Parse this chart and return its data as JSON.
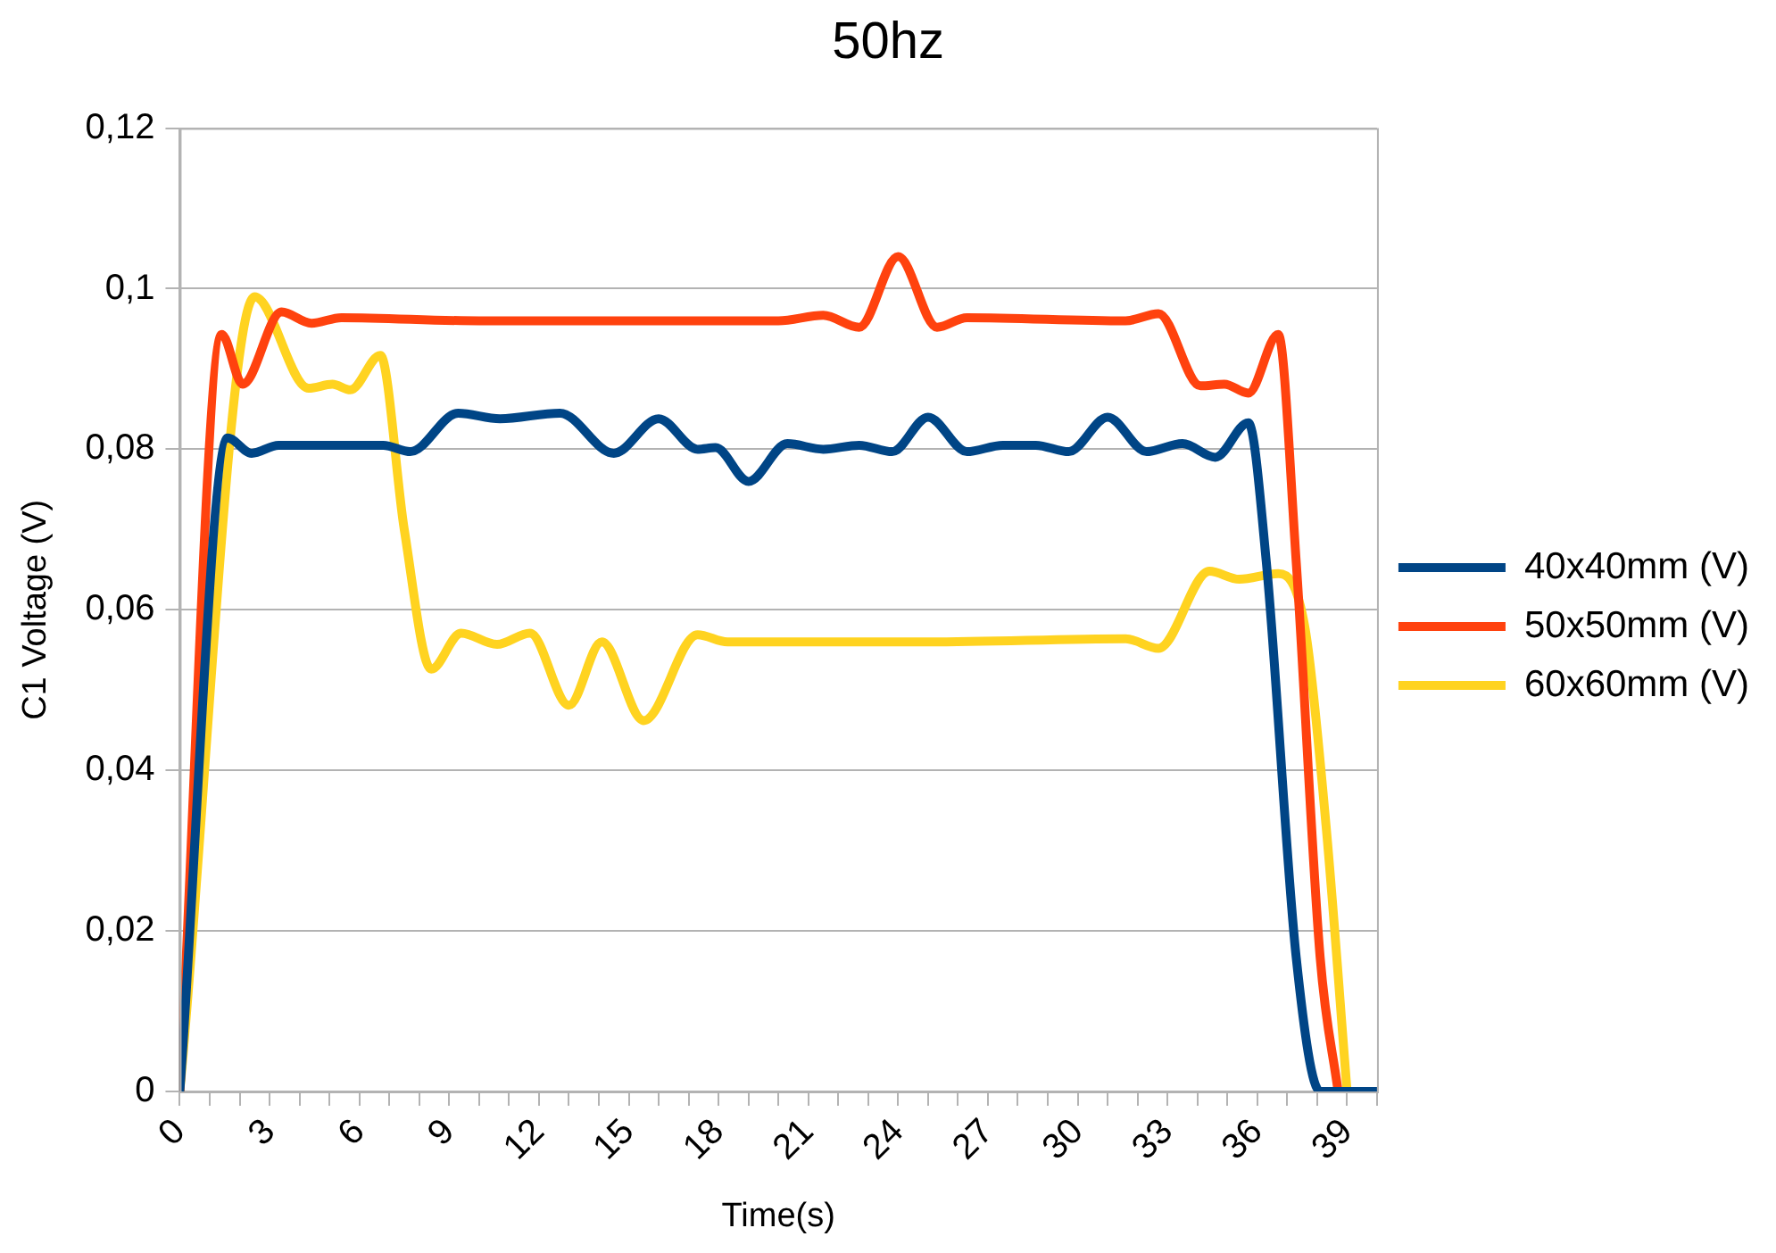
{
  "chart_data": {
    "type": "line",
    "title": "50hz",
    "xlabel": "Time(s)",
    "ylabel": "C1 Voltage (V)",
    "xlim": [
      0,
      40
    ],
    "xticks": [
      0,
      {
        "value": 1,
        "label": null
      },
      {
        "value": 2,
        "label": null
      },
      3,
      {
        "value": 4,
        "label": null
      },
      {
        "value": 5,
        "label": null
      },
      6,
      {
        "value": 7,
        "label": null
      },
      {
        "value": 8,
        "label": null
      },
      9,
      {
        "value": 10,
        "label": null
      },
      {
        "value": 11,
        "label": null
      },
      12,
      {
        "value": 13,
        "label": null
      },
      {
        "value": 14,
        "label": null
      },
      15,
      {
        "value": 16,
        "label": null
      },
      {
        "value": 17,
        "label": null
      },
      18,
      {
        "value": 19,
        "label": null
      },
      {
        "value": 20,
        "label": null
      },
      21,
      {
        "value": 22,
        "label": null
      },
      {
        "value": 23,
        "label": null
      },
      24,
      {
        "value": 25,
        "label": null
      },
      {
        "value": 26,
        "label": null
      },
      27,
      {
        "value": 28,
        "label": null
      },
      {
        "value": 29,
        "label": null
      },
      30,
      {
        "value": 31,
        "label": null
      },
      {
        "value": 32,
        "label": null
      },
      33,
      {
        "value": 34,
        "label": null
      },
      {
        "value": 35,
        "label": null
      },
      36,
      {
        "value": 37,
        "label": null
      },
      {
        "value": 38,
        "label": null
      },
      39,
      {
        "value": 40,
        "label": null
      }
    ],
    "ylim": [
      0,
      0.12
    ],
    "yticks": [
      0,
      {
        "value": 0.02,
        "label": "0,02"
      },
      {
        "value": 0.04,
        "label": "0,04"
      },
      {
        "value": 0.06,
        "label": "0,06"
      },
      {
        "value": 0.08,
        "label": "0,08"
      },
      {
        "value": 0.1,
        "label": "0,1"
      },
      {
        "value": 0.12,
        "label": "0,12"
      }
    ],
    "grid": "y",
    "legend": "right",
    "marker": "none",
    "line_style": "solid",
    "series": [
      {
        "name": "40x40mm (V)",
        "color": "#004586",
        "x": [
          0,
          1.6,
          2.4,
          3.3,
          6.8,
          7.7,
          9.3,
          10.7,
          12.7,
          14.5,
          16,
          17.3,
          17.9,
          19,
          20.3,
          21.5,
          22.7,
          23.8,
          25,
          26.3,
          27.5,
          28.6,
          29.7,
          31,
          32.3,
          33.5,
          34.6,
          35.7,
          36.3,
          37.3,
          38.1,
          39.2,
          40
        ],
        "values": [
          0,
          0.0814,
          0.0795,
          0.0805,
          0.0805,
          0.0797,
          0.0845,
          0.0838,
          0.0845,
          0.0795,
          0.0838,
          0.08,
          0.0802,
          0.076,
          0.0807,
          0.08,
          0.0805,
          0.0797,
          0.084,
          0.0797,
          0.0805,
          0.0805,
          0.0797,
          0.084,
          0.0797,
          0.0807,
          0.079,
          0.0833,
          0.066,
          0.0167,
          0,
          0,
          0
        ]
      },
      {
        "name": "50x50mm (V)",
        "color": "#ff420e",
        "x": [
          0,
          1.4,
          2.1,
          3.4,
          4.4,
          5.4,
          10,
          15,
          20,
          21.5,
          22.7,
          24,
          25.3,
          26.3,
          31.6,
          32.7,
          34.1,
          34.9,
          35.7,
          36.7,
          37.3,
          38.1,
          38.7
        ],
        "values": [
          0,
          0.0943,
          0.0881,
          0.0971,
          0.0957,
          0.0964,
          0.096,
          0.096,
          0.096,
          0.0967,
          0.0952,
          0.104,
          0.0952,
          0.0964,
          0.096,
          0.0969,
          0.0879,
          0.0881,
          0.087,
          0.0943,
          0.066,
          0.0167,
          0
        ]
      },
      {
        "name": "60x60mm (V)",
        "color": "#ffd320",
        "x": [
          0,
          2.5,
          4.3,
          5.1,
          5.7,
          6.7,
          7.5,
          8.4,
          9.4,
          10.6,
          11.7,
          13,
          14.1,
          15.5,
          17.3,
          18.3,
          25,
          31.6,
          32.7,
          34.4,
          35.4,
          36.7,
          37.6,
          38.3,
          39
        ],
        "values": [
          0,
          0.099,
          0.0876,
          0.0881,
          0.0874,
          0.0917,
          0.07,
          0.0526,
          0.0571,
          0.0557,
          0.0571,
          0.0481,
          0.056,
          0.0462,
          0.0569,
          0.056,
          0.056,
          0.0564,
          0.0552,
          0.0648,
          0.0638,
          0.0645,
          0.0576,
          0.033,
          0
        ]
      }
    ]
  }
}
